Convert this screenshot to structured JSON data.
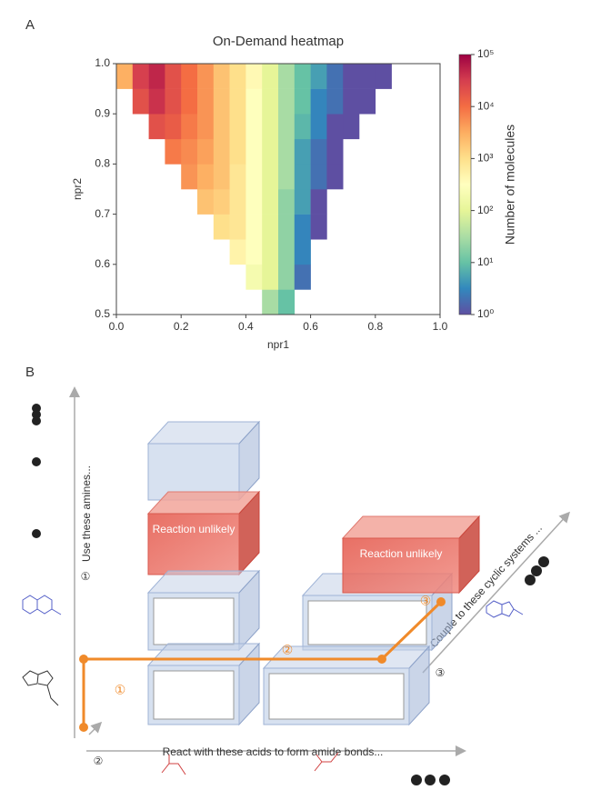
{
  "panel_a_label": "A",
  "chart_data": {
    "type": "heatmap",
    "title": "On-Demand heatmap",
    "x_label": "npr1",
    "y_label": "npr2",
    "xlim": [
      0,
      1
    ],
    "xticks": [
      {
        "value": 0,
        "label": "0.0"
      },
      0.2,
      0.4,
      0.6,
      0.8,
      {
        "value": 1,
        "label": "1.0"
      }
    ],
    "ylim": [
      0.5,
      1
    ],
    "yticks": [
      0.5,
      0.6,
      0.7,
      0.8,
      0.9,
      {
        "value": 1,
        "label": "1.0"
      }
    ],
    "xbins": [
      0,
      0.05,
      0.1,
      0.15,
      0.2,
      0.25,
      0.3,
      0.35,
      0.4,
      0.45,
      0.5,
      0.55,
      0.6,
      0.65,
      0.7,
      0.75,
      0.8,
      0.85,
      0.9,
      0.95,
      1
    ],
    "ybins": [
      0.5,
      0.55,
      0.6,
      0.65,
      0.7,
      0.75,
      0.8,
      0.85,
      0.9,
      0.95,
      1
    ],
    "z": [
      [
        null,
        null,
        null,
        null,
        null,
        null,
        null,
        null,
        null,
        30,
        10,
        null,
        null,
        null,
        null,
        null,
        null,
        null,
        null,
        null
      ],
      [
        null,
        null,
        null,
        null,
        null,
        null,
        null,
        null,
        200,
        100,
        20,
        2,
        null,
        null,
        null,
        null,
        null,
        null,
        null,
        null
      ],
      [
        null,
        null,
        null,
        null,
        null,
        null,
        null,
        500,
        300,
        100,
        20,
        3,
        null,
        null,
        null,
        null,
        null,
        null,
        null,
        null
      ],
      [
        null,
        null,
        null,
        null,
        null,
        null,
        1000,
        800,
        300,
        100,
        20,
        3,
        1,
        null,
        null,
        null,
        null,
        null,
        null,
        null
      ],
      [
        null,
        null,
        null,
        null,
        null,
        2000,
        1500,
        800,
        300,
        100,
        20,
        5,
        1,
        null,
        null,
        null,
        null,
        null,
        null,
        null
      ],
      [
        null,
        null,
        null,
        null,
        5000,
        3000,
        2000,
        800,
        300,
        100,
        30,
        5,
        2,
        1,
        null,
        null,
        null,
        null,
        null,
        null
      ],
      [
        null,
        null,
        null,
        8000,
        6000,
        4000,
        2000,
        1000,
        300,
        100,
        30,
        5,
        2,
        1,
        null,
        null,
        null,
        null,
        null,
        null
      ],
      [
        null,
        null,
        20000,
        15000,
        8000,
        5000,
        2000,
        1000,
        300,
        100,
        30,
        8,
        3,
        1,
        1,
        null,
        null,
        null,
        null,
        null
      ],
      [
        null,
        20000,
        40000,
        20000,
        10000,
        5000,
        2000,
        1000,
        300,
        100,
        30,
        10,
        3,
        2,
        1,
        1,
        null,
        null,
        null,
        null
      ],
      [
        3000,
        30000,
        50000,
        20000,
        10000,
        5000,
        2000,
        1000,
        400,
        100,
        30,
        10,
        5,
        2,
        1,
        1,
        1,
        null,
        null,
        null
      ]
    ],
    "colorbar_label": "Number of molecules",
    "zscale": "log",
    "zlim": [
      1,
      100000
    ],
    "zticks": [
      {
        "value": 1,
        "label": "10⁰"
      },
      {
        "value": 10,
        "label": "10¹"
      },
      {
        "value": 100,
        "label": "10²"
      },
      {
        "value": 1000,
        "label": "10³"
      },
      {
        "value": 10000,
        "label": "10⁴"
      },
      {
        "value": 100000,
        "label": "10⁵"
      }
    ],
    "colorscale": [
      "#5e4fa2",
      "#3288bd",
      "#66c2a5",
      "#abdda4",
      "#e6f598",
      "#ffffbf",
      "#fee08b",
      "#fdae61",
      "#f46d43",
      "#d53e4f",
      "#9e0142"
    ]
  },
  "diagram": {
    "label": "B",
    "amines_axis": "Use these amines...",
    "acids_axis": "React with these acids to form amide bonds...",
    "cyclic_axis": "Couple to these cyclic systems ...",
    "axis_steps": [
      "①",
      "②",
      "③"
    ],
    "path_steps": [
      "①",
      "②",
      "③"
    ],
    "unlikely": [
      "Reaction unlikely",
      "Reaction unlikely"
    ]
  }
}
